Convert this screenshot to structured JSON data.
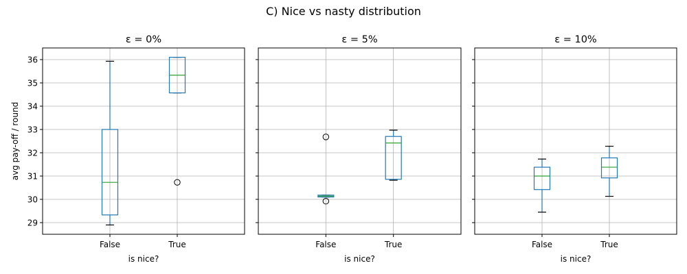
{
  "figure": {
    "suptitle": "C) Nice vs nasty distribution"
  },
  "chart_data": [
    {
      "type": "box",
      "title": "ε = 0%",
      "xlabel": "is nice?",
      "ylabel": "avg pay-off / round",
      "categories": [
        "False",
        "True"
      ],
      "ylim": [
        28.5,
        36.5
      ],
      "yticks": [
        29,
        30,
        31,
        32,
        33,
        34,
        35,
        36
      ],
      "grid": true,
      "boxes": [
        {
          "category": "False",
          "whisker_low": 28.9,
          "q1": 29.33,
          "median": 30.73,
          "q3": 33.0,
          "whisker_high": 35.93,
          "outliers": []
        },
        {
          "category": "True",
          "whisker_low": 34.57,
          "q1": 34.57,
          "median": 35.33,
          "q3": 36.1,
          "whisker_high": 36.1,
          "outliers": [
            30.73
          ]
        }
      ]
    },
    {
      "type": "box",
      "title": "ε = 5%",
      "xlabel": "is nice?",
      "ylabel": "",
      "categories": [
        "False",
        "True"
      ],
      "ylim": [
        28.5,
        36.5
      ],
      "yticks": [
        29,
        30,
        31,
        32,
        33,
        34,
        35,
        36
      ],
      "grid": true,
      "boxes": [
        {
          "category": "False",
          "whisker_low": 30.1,
          "q1": 30.1,
          "median": 30.14,
          "q3": 30.18,
          "whisker_high": 30.18,
          "outliers": [
            32.68,
            29.92
          ]
        },
        {
          "category": "True",
          "whisker_low": 30.82,
          "q1": 30.86,
          "median": 32.42,
          "q3": 32.7,
          "whisker_high": 32.97,
          "outliers": []
        }
      ]
    },
    {
      "type": "box",
      "title": "ε = 10%",
      "xlabel": "is nice?",
      "ylabel": "",
      "categories": [
        "False",
        "True"
      ],
      "ylim": [
        28.5,
        36.5
      ],
      "yticks": [
        29,
        30,
        31,
        32,
        33,
        34,
        35,
        36
      ],
      "grid": true,
      "boxes": [
        {
          "category": "False",
          "whisker_low": 29.45,
          "q1": 30.42,
          "median": 31.0,
          "q3": 31.38,
          "whisker_high": 31.73,
          "outliers": []
        },
        {
          "category": "True",
          "whisker_low": 30.13,
          "q1": 30.92,
          "median": 31.38,
          "q3": 31.78,
          "whisker_high": 32.28,
          "outliers": []
        }
      ]
    }
  ],
  "colors": {
    "box": "#1f77b4",
    "median": "#2ca02c",
    "grid": "#b0b0b0",
    "axis": "#000000",
    "outlier": "#000000"
  }
}
